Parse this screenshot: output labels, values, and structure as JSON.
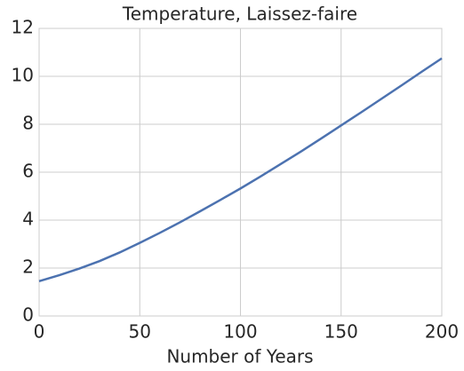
{
  "chart_data": {
    "type": "line",
    "title": "Temperature, Laissez-faire",
    "xlabel": "Number of Years",
    "x": [
      0,
      10,
      20,
      30,
      40,
      50,
      60,
      70,
      80,
      90,
      100,
      110,
      120,
      130,
      140,
      150,
      160,
      170,
      180,
      190,
      200
    ],
    "series": [
      {
        "name": "Temperature",
        "color": "#4c72b0",
        "values": [
          1.45,
          1.7,
          1.98,
          2.29,
          2.65,
          3.05,
          3.47,
          3.91,
          4.37,
          4.84,
          5.32,
          5.82,
          6.34,
          6.86,
          7.4,
          7.95,
          8.5,
          9.06,
          9.62,
          10.19,
          10.75
        ]
      }
    ],
    "xlim": [
      0,
      200
    ],
    "xticks": [
      0,
      50,
      100,
      150,
      200
    ],
    "ylim": [
      0,
      12
    ],
    "yticks": [
      0,
      2,
      4,
      6,
      8,
      10,
      12
    ],
    "grid": true,
    "legend": false
  }
}
